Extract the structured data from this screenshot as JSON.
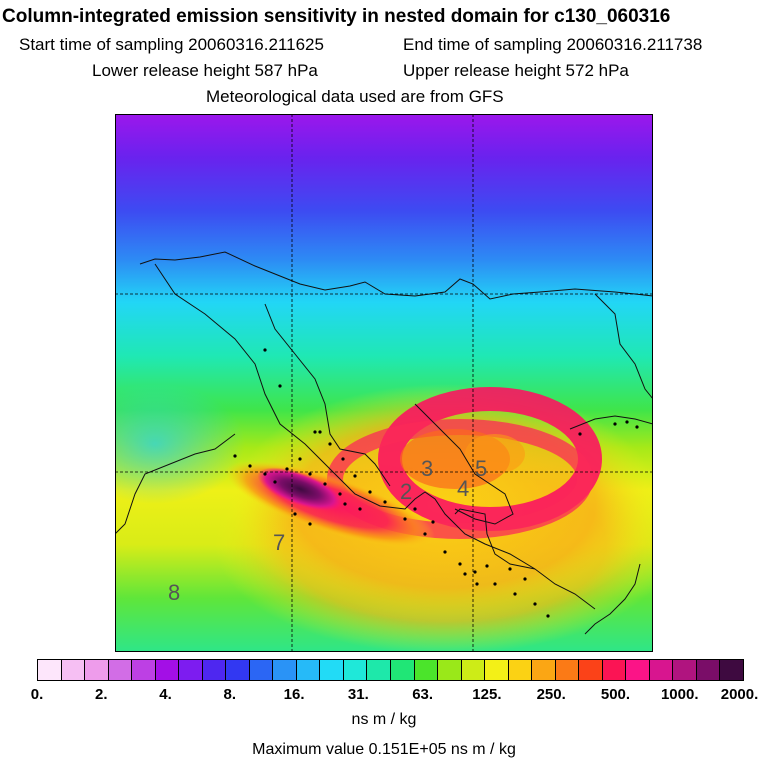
{
  "header": {
    "title": "Column-integrated emission sensitivity in nested domain for c130_060316",
    "start_time": "Start time of sampling 20060316.211625",
    "end_time": "End time of sampling 20060316.211738",
    "lower_release": "Lower release height  587 hPa",
    "upper_release": "Upper release height  572 hPa",
    "met_data": "Meteorological data used are from GFS"
  },
  "map": {
    "labels": [
      "2",
      "3",
      "4",
      "5",
      "7",
      "8"
    ],
    "grid_style": "dashed"
  },
  "colorbar": {
    "colors": [
      "#fde6fb",
      "#f6bff3",
      "#ee9ceb",
      "#d26de6",
      "#bd40e4",
      "#a30fe6",
      "#7d1cf0",
      "#4e27f0",
      "#3238f2",
      "#2b66f4",
      "#2a93f6",
      "#26baf8",
      "#22dbf6",
      "#1fe8d9",
      "#1ee8aa",
      "#20e676",
      "#4be42b",
      "#9ae819",
      "#cdec17",
      "#f3f017",
      "#fbd214",
      "#fba614",
      "#fb7a16",
      "#fb4218",
      "#fb1454",
      "#fb1487",
      "#d8158f",
      "#b0147f",
      "#7a0d68",
      "#3e0a40"
    ],
    "tick_labels": [
      "0.",
      "2.",
      "4.",
      "8.",
      "16.",
      "31.",
      "63.",
      "125.",
      "250.",
      "500.",
      "1000.",
      "2000."
    ],
    "units": "ns m / kg"
  },
  "footer": {
    "max_value": "Maximum value  0.151E+05 ns m / kg"
  }
}
